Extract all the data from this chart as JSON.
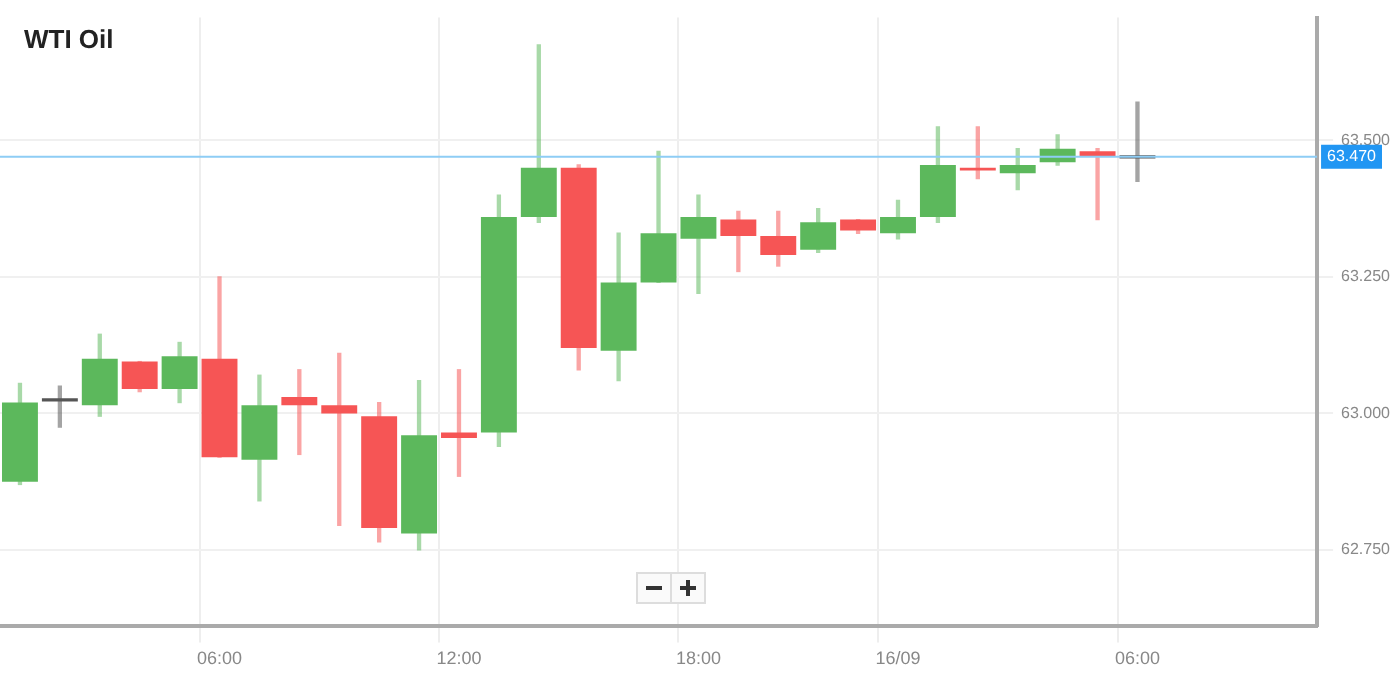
{
  "chart_data": {
    "type": "candlestick",
    "title": "WTI Oil",
    "categories": [
      null,
      null,
      null,
      null,
      null,
      "06:00",
      null,
      null,
      null,
      null,
      null,
      "12:00",
      null,
      null,
      null,
      null,
      null,
      "18:00",
      null,
      null,
      null,
      null,
      "16/09",
      null,
      null,
      null,
      null,
      null,
      "06:00",
      null,
      null,
      null,
      null
    ],
    "ohlc": [
      [
        62.875,
        63.055,
        62.87,
        63.02
      ],
      [
        63.028,
        63.05,
        62.975,
        63.022
      ],
      [
        63.015,
        63.145,
        62.995,
        63.1
      ],
      [
        63.095,
        63.095,
        63.04,
        63.045
      ],
      [
        63.045,
        63.13,
        63.02,
        63.105
      ],
      [
        63.1,
        63.25,
        62.92,
        62.92
      ],
      [
        62.915,
        63.07,
        62.84,
        63.015
      ],
      [
        63.03,
        63.08,
        62.925,
        63.015
      ],
      [
        63.015,
        63.11,
        62.795,
        63.0
      ],
      [
        62.995,
        63.02,
        62.765,
        62.79
      ],
      [
        62.78,
        63.06,
        62.75,
        62.96
      ],
      [
        62.965,
        63.08,
        62.885,
        62.955
      ],
      [
        62.965,
        63.4,
        62.94,
        63.36
      ],
      [
        63.36,
        63.675,
        63.35,
        63.45
      ],
      [
        63.45,
        63.455,
        63.08,
        63.12
      ],
      [
        63.115,
        63.33,
        63.06,
        63.24
      ],
      [
        63.24,
        63.48,
        63.24,
        63.33
      ],
      [
        63.32,
        63.4,
        63.22,
        63.36
      ],
      [
        63.355,
        63.37,
        63.26,
        63.325
      ],
      [
        63.325,
        63.37,
        63.27,
        63.29
      ],
      [
        63.3,
        63.375,
        63.295,
        63.35
      ],
      [
        63.355,
        63.355,
        63.33,
        63.335
      ],
      [
        63.33,
        63.39,
        63.32,
        63.36
      ],
      [
        63.36,
        63.525,
        63.35,
        63.455
      ],
      [
        63.45,
        63.525,
        63.43,
        63.445
      ],
      [
        63.44,
        63.485,
        63.41,
        63.455
      ],
      [
        63.46,
        63.51,
        63.455,
        63.485
      ],
      [
        63.48,
        63.485,
        63.355,
        63.47
      ],
      [
        63.467,
        63.57,
        63.425,
        63.473
      ],
      null,
      null,
      null,
      null
    ],
    "colors": [
      "#5cb85c",
      "#555555",
      "#5cb85c",
      "#f65555",
      "#5cb85c",
      "#f65555",
      "#5cb85c",
      "#f65555",
      "#f65555",
      "#f65555",
      "#5cb85c",
      "#f65555",
      "#5cb85c",
      "#5cb85c",
      "#f65555",
      "#5cb85c",
      "#5cb85c",
      "#5cb85c",
      "#f65555",
      "#f65555",
      "#5cb85c",
      "#f65555",
      "#5cb85c",
      "#5cb85c",
      "#f65555",
      "#5cb85c",
      "#5cb85c",
      "#f65555",
      "#555555",
      null,
      null,
      null,
      null
    ],
    "ylim": [
      62.61,
      63.725
    ],
    "yticks": [
      {
        "value": 62.75,
        "label": "62.750"
      },
      {
        "value": 63,
        "label": "63.000"
      },
      {
        "value": 63.25,
        "label": "63.250"
      },
      {
        "value": 63.5,
        "label": "63.500"
      }
    ],
    "ref_lines": [
      {
        "axis": "y",
        "value": 63.47,
        "label": "63.470",
        "color": "#8ecdf5"
      }
    ],
    "grid": true,
    "legend": false
  }
}
